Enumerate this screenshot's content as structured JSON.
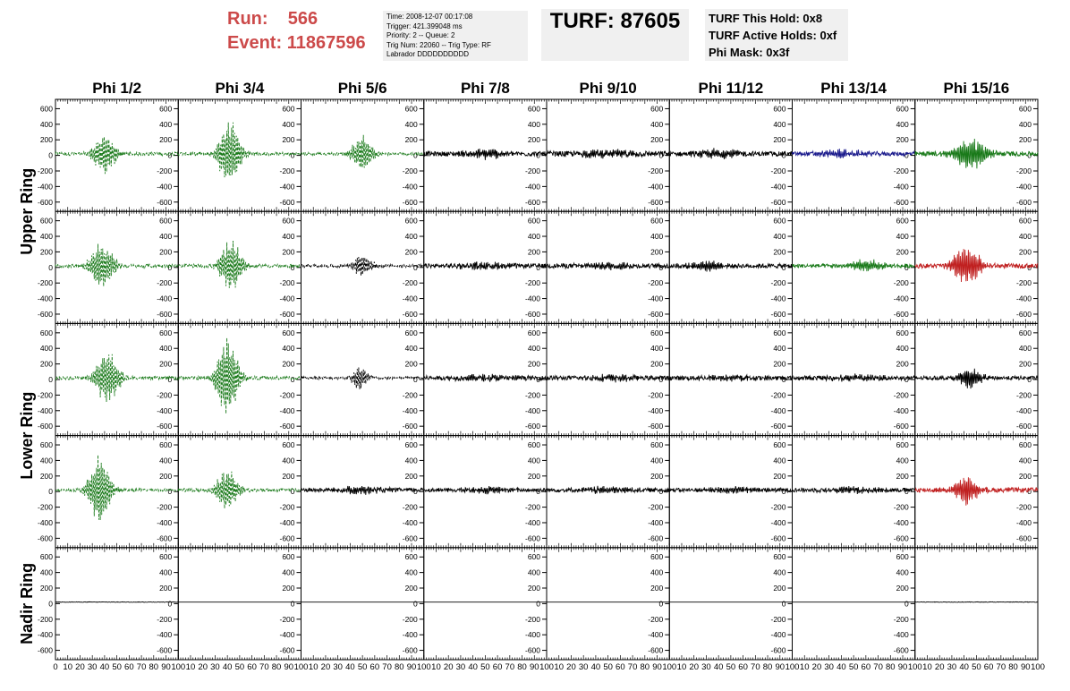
{
  "header": {
    "run_label": "Run:",
    "run_value": "566",
    "event_label": "Event:",
    "event_value": "11867596",
    "info_lines": [
      "Time: 2008-12-07 00:17:08",
      "Trigger: 421.399048 ms",
      "Priority: 2 -- Queue: 2",
      "Trig Num: 22060 -- Trig Type: RF",
      "Labrador DDDDDDDDDD"
    ],
    "turf": "TURF: 87605",
    "turf_lines": [
      "TURF This Hold: 0x8",
      "TURF Active Holds: 0xf",
      "Phi Mask: 0x3f"
    ]
  },
  "chart_data": {
    "type": "line",
    "description_columns": [
      "Phi 1/2",
      "Phi 3/4",
      "Phi 5/6",
      "Phi 7/8",
      "Phi 9/10",
      "Phi 11/12",
      "Phi 13/14",
      "Phi 15/16"
    ],
    "row_labels": [
      {
        "text": "Upper Ring",
        "rows": [
          0,
          1
        ]
      },
      {
        "text": "Lower Ring",
        "rows": [
          2,
          3
        ]
      },
      {
        "text": "Nadir Ring",
        "rows": [
          4
        ]
      }
    ],
    "x_ticks": [
      0,
      10,
      20,
      30,
      40,
      50,
      60,
      70,
      80,
      90,
      100
    ],
    "xlim": [
      0,
      100
    ],
    "y_ticks": [
      600,
      400,
      200,
      0,
      -200,
      -400,
      -600
    ],
    "ylim": [
      -720,
      720
    ],
    "colors": {
      "black": "#000000",
      "green": "#1a7a1a",
      "blue": "#1a1a8c",
      "red": "#c02020"
    },
    "panels": [
      [
        {
          "row": 0,
          "col": 0,
          "color": "green",
          "style": "dashed",
          "center": 40,
          "width": 10,
          "amp": 260,
          "noise": 22
        },
        {
          "row": 0,
          "col": 1,
          "color": "green",
          "style": "dashed",
          "center": 42,
          "width": 9,
          "amp": 480,
          "noise": 22
        },
        {
          "row": 0,
          "col": 2,
          "color": "green",
          "style": "dashed",
          "center": 50,
          "width": 9,
          "amp": 240,
          "noise": 18
        },
        {
          "row": 0,
          "col": 3,
          "color": "black",
          "style": "solid",
          "center": 50,
          "width": 18,
          "amp": 60,
          "noise": 30
        },
        {
          "row": 0,
          "col": 4,
          "color": "black",
          "style": "solid",
          "center": 50,
          "width": 25,
          "amp": 40,
          "noise": 35
        },
        {
          "row": 0,
          "col": 5,
          "color": "black",
          "style": "solid",
          "center": 40,
          "width": 18,
          "amp": 60,
          "noise": 30
        },
        {
          "row": 0,
          "col": 6,
          "color": "blue",
          "style": "solid",
          "center": 40,
          "width": 20,
          "amp": 50,
          "noise": 28
        },
        {
          "row": 0,
          "col": 7,
          "color": "green",
          "style": "solid",
          "center": 45,
          "width": 14,
          "amp": 210,
          "noise": 30
        }
      ],
      [
        {
          "row": 1,
          "col": 0,
          "color": "green",
          "style": "dashed",
          "center": 38,
          "width": 10,
          "amp": 330,
          "noise": 22
        },
        {
          "row": 1,
          "col": 1,
          "color": "green",
          "style": "dashed",
          "center": 43,
          "width": 9,
          "amp": 360,
          "noise": 22
        },
        {
          "row": 1,
          "col": 2,
          "color": "black",
          "style": "dashed",
          "center": 50,
          "width": 8,
          "amp": 170,
          "noise": 20
        },
        {
          "row": 1,
          "col": 3,
          "color": "black",
          "style": "solid",
          "center": 50,
          "width": 25,
          "amp": 40,
          "noise": 28
        },
        {
          "row": 1,
          "col": 4,
          "color": "black",
          "style": "solid",
          "center": 50,
          "width": 25,
          "amp": 40,
          "noise": 28
        },
        {
          "row": 1,
          "col": 5,
          "color": "black",
          "style": "solid",
          "center": 30,
          "width": 15,
          "amp": 60,
          "noise": 28
        },
        {
          "row": 1,
          "col": 6,
          "color": "green",
          "style": "solid",
          "center": 60,
          "width": 14,
          "amp": 80,
          "noise": 25
        },
        {
          "row": 1,
          "col": 7,
          "color": "red",
          "style": "solid",
          "center": 42,
          "width": 12,
          "amp": 260,
          "noise": 30
        }
      ],
      [
        {
          "row": 2,
          "col": 0,
          "color": "green",
          "style": "dashed",
          "center": 42,
          "width": 10,
          "amp": 360,
          "noise": 22
        },
        {
          "row": 2,
          "col": 1,
          "color": "green",
          "style": "dashed",
          "center": 40,
          "width": 9,
          "amp": 560,
          "noise": 22
        },
        {
          "row": 2,
          "col": 2,
          "color": "black",
          "style": "dashed",
          "center": 48,
          "width": 7,
          "amp": 160,
          "noise": 18
        },
        {
          "row": 2,
          "col": 3,
          "color": "black",
          "style": "solid",
          "center": 50,
          "width": 25,
          "amp": 35,
          "noise": 28
        },
        {
          "row": 2,
          "col": 4,
          "color": "black",
          "style": "solid",
          "center": 50,
          "width": 25,
          "amp": 35,
          "noise": 28
        },
        {
          "row": 2,
          "col": 5,
          "color": "black",
          "style": "solid",
          "center": 50,
          "width": 25,
          "amp": 35,
          "noise": 28
        },
        {
          "row": 2,
          "col": 6,
          "color": "black",
          "style": "solid",
          "center": 50,
          "width": 25,
          "amp": 35,
          "noise": 28
        },
        {
          "row": 2,
          "col": 7,
          "color": "black",
          "style": "solid",
          "center": 45,
          "width": 10,
          "amp": 140,
          "noise": 25
        }
      ],
      [
        {
          "row": 3,
          "col": 0,
          "color": "green",
          "style": "dashed",
          "center": 36,
          "width": 9,
          "amp": 480,
          "noise": 20
        },
        {
          "row": 3,
          "col": 1,
          "color": "green",
          "style": "dashed",
          "center": 40,
          "width": 9,
          "amp": 300,
          "noise": 22
        },
        {
          "row": 3,
          "col": 2,
          "color": "black",
          "style": "solid",
          "center": 50,
          "width": 20,
          "amp": 45,
          "noise": 25
        },
        {
          "row": 3,
          "col": 3,
          "color": "black",
          "style": "solid",
          "center": 50,
          "width": 25,
          "amp": 35,
          "noise": 25
        },
        {
          "row": 3,
          "col": 4,
          "color": "black",
          "style": "solid",
          "center": 50,
          "width": 25,
          "amp": 35,
          "noise": 25
        },
        {
          "row": 3,
          "col": 5,
          "color": "black",
          "style": "solid",
          "center": 50,
          "width": 25,
          "amp": 35,
          "noise": 25
        },
        {
          "row": 3,
          "col": 6,
          "color": "black",
          "style": "solid",
          "center": 50,
          "width": 25,
          "amp": 35,
          "noise": 25
        },
        {
          "row": 3,
          "col": 7,
          "color": "red",
          "style": "solid",
          "center": 42,
          "width": 10,
          "amp": 200,
          "noise": 30
        }
      ],
      [
        {
          "row": 4,
          "col": 0,
          "color": "black",
          "style": "solid",
          "center": 50,
          "width": 40,
          "amp": 0,
          "noise": 3
        },
        {
          "row": 4,
          "col": 1,
          "color": "black",
          "style": "solid",
          "center": 50,
          "width": 40,
          "amp": 0,
          "noise": 0
        },
        {
          "row": 4,
          "col": 2,
          "color": "black",
          "style": "solid",
          "center": 50,
          "width": 40,
          "amp": 0,
          "noise": 0
        },
        {
          "row": 4,
          "col": 3,
          "color": "black",
          "style": "solid",
          "center": 50,
          "width": 40,
          "amp": 0,
          "noise": 0
        },
        {
          "row": 4,
          "col": 4,
          "color": "black",
          "style": "solid",
          "center": 50,
          "width": 40,
          "amp": 0,
          "noise": 0
        },
        {
          "row": 4,
          "col": 5,
          "color": "black",
          "style": "solid",
          "center": 50,
          "width": 40,
          "amp": 0,
          "noise": 0
        },
        {
          "row": 4,
          "col": 6,
          "color": "black",
          "style": "solid",
          "center": 50,
          "width": 40,
          "amp": 0,
          "noise": 0
        },
        {
          "row": 4,
          "col": 7,
          "color": "black",
          "style": "solid",
          "center": 50,
          "width": 40,
          "amp": 0,
          "noise": 3
        }
      ]
    ]
  }
}
